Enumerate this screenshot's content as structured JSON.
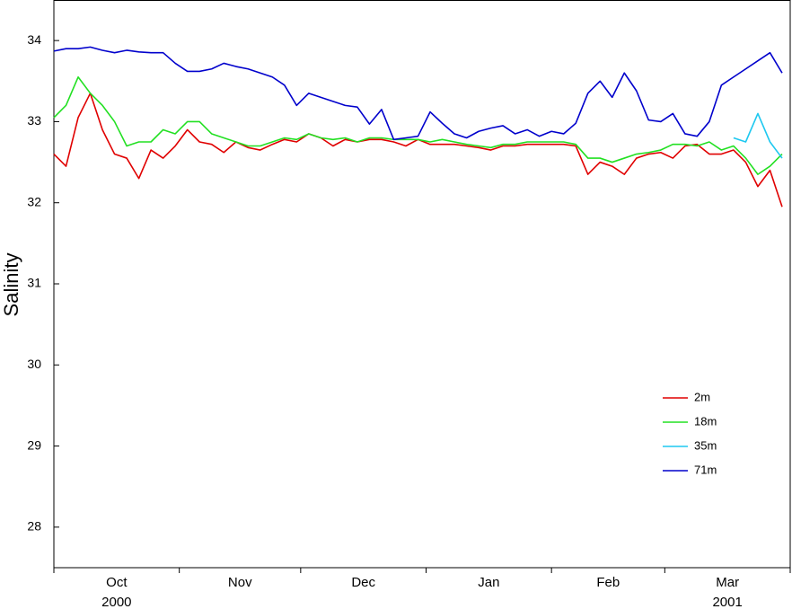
{
  "chart_data": {
    "type": "line",
    "ylabel": "Salinity",
    "x": [
      0,
      3,
      6,
      9,
      12,
      15,
      18,
      21,
      24,
      27,
      30,
      33,
      36,
      39,
      42,
      45,
      48,
      51,
      54,
      57,
      60,
      63,
      66,
      69,
      72,
      75,
      78,
      81,
      84,
      87,
      90,
      93,
      96,
      99,
      102,
      105,
      108,
      111,
      114,
      117,
      120,
      123,
      126,
      129,
      132,
      135,
      138,
      141,
      144,
      147,
      150,
      153,
      156,
      159,
      162,
      165,
      168,
      171,
      174,
      177,
      180
    ],
    "xlim": [
      0,
      182
    ],
    "xticks": [
      0,
      31,
      61,
      92,
      123,
      151,
      182
    ],
    "month_labels": [
      {
        "value": 15.5,
        "label": "Oct"
      },
      {
        "value": 46,
        "label": "Nov"
      },
      {
        "value": 76.5,
        "label": "Dec"
      },
      {
        "value": 107.5,
        "label": "Jan"
      },
      {
        "value": 137,
        "label": "Feb"
      },
      {
        "value": 166.5,
        "label": "Mar"
      }
    ],
    "year_labels": [
      {
        "value": 15.5,
        "label": "2000"
      },
      {
        "value": 166.5,
        "label": "2001"
      }
    ],
    "ylim": [
      27.5,
      34.5
    ],
    "yticks": [
      28,
      29,
      30,
      31,
      32,
      33,
      34
    ],
    "legend": "lower right",
    "series": [
      {
        "name": "2m",
        "color": "#e00000",
        "values": [
          32.6,
          32.45,
          33.05,
          33.35,
          32.9,
          32.6,
          32.55,
          32.3,
          32.65,
          32.55,
          32.7,
          32.9,
          32.75,
          32.72,
          32.62,
          32.75,
          32.68,
          32.65,
          32.72,
          32.78,
          32.75,
          32.85,
          32.8,
          32.7,
          32.78,
          32.75,
          32.78,
          32.78,
          32.75,
          32.7,
          32.78,
          32.72,
          32.72,
          32.72,
          32.7,
          32.68,
          32.65,
          32.7,
          32.7,
          32.72,
          32.72,
          32.72,
          32.72,
          32.7,
          32.35,
          32.5,
          32.45,
          32.35,
          32.55,
          32.6,
          32.62,
          32.55,
          32.7,
          32.72,
          32.6,
          32.6,
          32.65,
          32.5,
          32.2,
          32.4,
          31.95
        ]
      },
      {
        "name": "18m",
        "color": "#22e022",
        "values": [
          33.05,
          33.2,
          33.55,
          33.35,
          33.2,
          33.0,
          32.7,
          32.75,
          32.75,
          32.9,
          32.85,
          33.0,
          33.0,
          32.85,
          32.8,
          32.75,
          32.7,
          32.7,
          32.75,
          32.8,
          32.78,
          32.85,
          32.8,
          32.78,
          32.8,
          32.75,
          32.8,
          32.8,
          32.78,
          32.78,
          32.78,
          32.75,
          32.78,
          32.75,
          32.72,
          32.7,
          32.68,
          32.72,
          32.72,
          32.75,
          32.75,
          32.75,
          32.75,
          32.72,
          32.55,
          32.55,
          32.5,
          32.55,
          32.6,
          32.62,
          32.65,
          32.72,
          32.72,
          32.7,
          32.75,
          32.65,
          32.7,
          32.55,
          32.35,
          32.45,
          32.6
        ]
      },
      {
        "name": "35m",
        "color": "#1ec8f0",
        "values": [
          null,
          null,
          null,
          null,
          null,
          null,
          null,
          null,
          null,
          null,
          null,
          null,
          null,
          null,
          null,
          null,
          null,
          null,
          null,
          null,
          null,
          null,
          null,
          null,
          null,
          null,
          null,
          null,
          null,
          null,
          null,
          null,
          null,
          null,
          null,
          null,
          null,
          null,
          null,
          null,
          null,
          null,
          null,
          null,
          null,
          null,
          null,
          null,
          null,
          null,
          null,
          null,
          null,
          null,
          null,
          null,
          32.8,
          32.75,
          33.1,
          32.75,
          32.55
        ]
      },
      {
        "name": "71m",
        "color": "#0000cc",
        "values": [
          33.87,
          33.9,
          33.9,
          33.92,
          33.88,
          33.85,
          33.88,
          33.86,
          33.85,
          33.85,
          33.72,
          33.62,
          33.62,
          33.65,
          33.72,
          33.68,
          33.65,
          33.6,
          33.55,
          33.45,
          33.2,
          33.35,
          33.3,
          33.25,
          33.2,
          33.18,
          32.97,
          33.15,
          32.78,
          32.8,
          32.82,
          33.12,
          32.98,
          32.85,
          32.8,
          32.88,
          32.92,
          32.95,
          32.85,
          32.9,
          32.82,
          32.88,
          32.85,
          32.98,
          33.35,
          33.5,
          33.3,
          33.6,
          33.38,
          33.02,
          33.0,
          33.1,
          32.85,
          32.82,
          33.0,
          33.45,
          33.55,
          33.65,
          33.75,
          33.85,
          33.6
        ]
      }
    ]
  }
}
